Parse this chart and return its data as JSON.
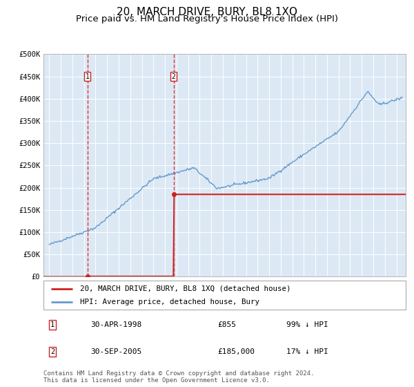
{
  "title": "20, MARCH DRIVE, BURY, BL8 1XQ",
  "subtitle": "Price paid vs. HM Land Registry's House Price Index (HPI)",
  "title_fontsize": 11,
  "subtitle_fontsize": 9.5,
  "background_color": "#ffffff",
  "plot_bg_color": "#dce9f5",
  "grid_color": "#ffffff",
  "ylim": [
    0,
    500000
  ],
  "yticks": [
    0,
    50000,
    100000,
    150000,
    200000,
    250000,
    300000,
    350000,
    400000,
    450000,
    500000
  ],
  "ytick_labels": [
    "£0",
    "£50K",
    "£100K",
    "£150K",
    "£200K",
    "£250K",
    "£300K",
    "£350K",
    "£400K",
    "£450K",
    "£500K"
  ],
  "xlim_start": 1994.5,
  "xlim_end": 2025.8,
  "t1_year": 1998.29,
  "t1_price": 855,
  "t2_year": 2005.75,
  "t2_price": 185000,
  "hpi_line_color": "#6699cc",
  "price_line_color": "#cc2222",
  "vline_color": "#dd3333",
  "legend_entries": [
    "20, MARCH DRIVE, BURY, BL8 1XQ (detached house)",
    "HPI: Average price, detached house, Bury"
  ],
  "footer_text": "Contains HM Land Registry data © Crown copyright and database right 2024.\nThis data is licensed under the Open Government Licence v3.0.",
  "table_rows": [
    {
      "label": "1",
      "date": "30-APR-1998",
      "price": "£855",
      "hpi_note": "99% ↓ HPI"
    },
    {
      "label": "2",
      "date": "30-SEP-2005",
      "price": "£185,000",
      "hpi_note": "17% ↓ HPI"
    }
  ]
}
